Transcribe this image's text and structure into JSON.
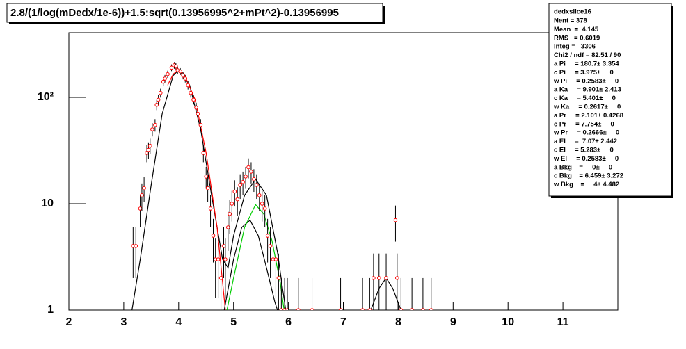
{
  "chart_data": {
    "type": "scatter",
    "title": "2.8/(1/log(mDedx/1e-6))+1.5:sqrt(0.13956995^2+mPt^2)-0.13956995",
    "x": [
      3.17,
      3.22,
      3.3,
      3.33,
      3.37,
      3.42,
      3.45,
      3.48,
      3.52,
      3.57,
      3.6,
      3.63,
      3.67,
      3.72,
      3.75,
      3.8,
      3.87,
      3.92,
      3.95,
      3.98,
      4.03,
      4.08,
      4.12,
      4.17,
      4.22,
      4.27,
      4.32,
      4.35,
      4.4,
      4.45,
      4.5,
      4.53,
      4.58,
      4.63,
      4.67,
      4.72,
      4.77,
      4.82,
      4.85,
      4.9,
      4.93,
      4.97,
      5.02,
      5.07,
      5.12,
      5.17,
      5.22,
      5.27,
      5.32,
      5.37,
      5.42,
      5.47,
      5.52,
      5.57,
      5.62,
      5.67,
      5.72,
      5.77,
      5.82,
      5.87,
      5.93,
      5.98,
      6.18,
      6.43,
      6.95,
      7.35,
      7.48,
      7.55,
      7.65,
      7.78,
      7.95,
      7.98,
      8.05,
      8.25,
      8.45,
      8.6
    ],
    "values": [
      4,
      4,
      9,
      12,
      14,
      30,
      32,
      35,
      50,
      55,
      85,
      95,
      110,
      140,
      150,
      165,
      190,
      200,
      195,
      180,
      175,
      160,
      150,
      130,
      110,
      95,
      80,
      70,
      55,
      30,
      18,
      14,
      9,
      5,
      3,
      3,
      2,
      4,
      3,
      6,
      8,
      10,
      13,
      11,
      15,
      16,
      18,
      22,
      20,
      17,
      15,
      12,
      10,
      9,
      5,
      4,
      3,
      3,
      2,
      1,
      1,
      1,
      1,
      1,
      1,
      1,
      1,
      2,
      2,
      2,
      7,
      2,
      1,
      1,
      1,
      1
    ],
    "errors": [
      2,
      2,
      3,
      3.5,
      3.7,
      5.5,
      5.7,
      5.9,
      7.1,
      7.4,
      9.2,
      9.7,
      10.5,
      11.8,
      12.2,
      12.8,
      13.8,
      14.1,
      14,
      13.4,
      13.2,
      12.6,
      12.2,
      11.4,
      10.5,
      9.7,
      8.9,
      8.4,
      7.4,
      5.5,
      4.2,
      3.7,
      3,
      2.2,
      1.7,
      1.7,
      1.4,
      2,
      1.7,
      2.4,
      2.8,
      3.2,
      3.6,
      3.3,
      3.9,
      4,
      4.2,
      4.7,
      4.5,
      4.1,
      3.9,
      3.5,
      3.2,
      3,
      2.2,
      2,
      1.7,
      1.7,
      1.4,
      1,
      1,
      1,
      1,
      1,
      1,
      1,
      1,
      1.4,
      1.4,
      1.4,
      2.6,
      1.4,
      1,
      1,
      1,
      1
    ],
    "color": "#ff0000",
    "fits": [
      {
        "color": "#000000",
        "x": [
          3.15,
          3.3,
          3.5,
          3.7,
          3.9,
          4.0,
          4.2,
          4.4,
          4.6,
          4.8,
          4.9,
          5.0,
          5.2,
          5.4,
          5.6,
          5.8,
          5.9,
          5.95
        ],
        "values": [
          1,
          3,
          15,
          70,
          160,
          180,
          130,
          50,
          12,
          3,
          2.5,
          5,
          12,
          17,
          12,
          3.5,
          1.5,
          1
        ]
      },
      {
        "color": "#ff0000",
        "x": [
          3.8,
          3.9,
          4.0,
          4.1,
          4.3,
          4.5,
          4.7,
          4.85
        ],
        "values": [
          130,
          165,
          181,
          165,
          95,
          30,
          6,
          1
        ]
      },
      {
        "color": "#000000",
        "x": [
          4.83,
          5.0,
          5.15,
          5.3,
          5.45,
          5.6,
          5.75,
          5.8
        ],
        "values": [
          1,
          3,
          6,
          7,
          5,
          2.5,
          1.2,
          1
        ]
      },
      {
        "color": "#00cc00",
        "x": [
          4.88,
          5.0,
          5.2,
          5.4,
          5.55,
          5.7,
          5.85,
          5.92
        ],
        "values": [
          1,
          2,
          6,
          9.8,
          8,
          4.5,
          1.8,
          1
        ]
      },
      {
        "color": "#000000",
        "x": [
          7.5,
          7.65,
          7.78,
          7.9,
          8.05
        ],
        "values": [
          1,
          1.6,
          2,
          1.6,
          1
        ]
      }
    ],
    "xlim": [
      2,
      12
    ],
    "ylim": [
      1,
      405
    ],
    "log_y": true,
    "xticks": [
      2,
      3,
      4,
      5,
      6,
      7,
      8,
      9,
      10,
      11
    ],
    "yticks": [
      1,
      10,
      {
        "value": 100,
        "label": "10²"
      }
    ],
    "stats": {
      "title": "dedxslice16",
      "rows": [
        "Nent = 378",
        "Mean  =  4.145",
        "RMS   = 0.6019",
        "Integ =   3306",
        "Chi2 / ndf = 82.51 / 90",
        "a Pi     = 180.7± 3.354",
        "c Pi     = 3.975±     0",
        "w Pi     = 0.2583±     0",
        "a Ka     = 9.901± 2.413",
        "c Ka     = 5.401±     0",
        "w Ka     = 0.2617±     0",
        "a Pr     = 2.101± 0.4268",
        "c Pr     = 7.754±     0",
        "w Pr     = 0.2666±     0",
        "a El     =  7.07± 2.442",
        "c El     = 5.283±     0",
        "w El     = 0.2583±     0",
        "a Bkg    =     0±     0",
        "c Bkg    = 6.459± 3.272",
        "w Bkg    =     4± 4.482"
      ]
    }
  }
}
